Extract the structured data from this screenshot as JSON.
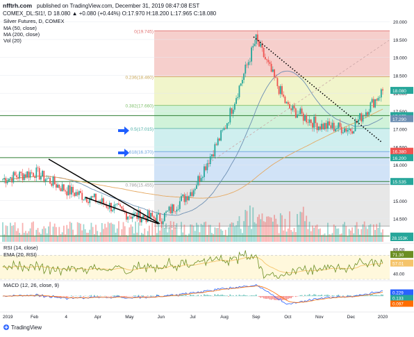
{
  "header": {
    "publisher": "nfftrh.com",
    "published_text": "published on TradingView.com, December 31, 2019 08:47:08 EST",
    "symbol_line": "COMEX_DL:SI1!, D 18.080 ▲ +0.080 (+0.44%) O:17.970 H:18.200 L:17.965 C:18.080"
  },
  "legend": {
    "title": "Silver Futures, D, COMEX",
    "ma50": "MA (50, close)",
    "ma200": "MA (200, close)",
    "vol": "Vol (20)"
  },
  "colors": {
    "up": "#26a69a",
    "down": "#ef5350",
    "ma50": "#6d8fb3",
    "ma200": "#e5a860",
    "rsi": "#6b8e23",
    "rsi_ema": "#f5c46a",
    "macd": "#2962ff",
    "signal": "#ff6d00",
    "fib_red": "#f4c7c3",
    "fib_yellow": "#eef3c2",
    "fib_green": "#c8f0d2",
    "fib_teal": "#c7ecec",
    "fib_blue": "#c9def6",
    "fib_gray": "#e3e3e3"
  },
  "chart_data": [
    {
      "type": "line",
      "name": "price",
      "x": [
        "2019-01",
        "2019-02",
        "2019-03",
        "2019-04",
        "2019-05",
        "2019-06",
        "2019-07",
        "2019-08",
        "2019-09",
        "2019-10",
        "2019-11",
        "2019-12",
        "2020-01"
      ],
      "close_approx": [
        15.6,
        15.8,
        15.3,
        15.0,
        14.6,
        14.5,
        15.3,
        17.0,
        19.5,
        17.6,
        17.1,
        17.0,
        18.08
      ],
      "y_axis_ticks": [
        "20.000",
        "19.500",
        "19.000",
        "18.500",
        "18.000",
        "17.500",
        "17.000",
        "16.500",
        "16.000",
        "15.500",
        "15.000",
        "14.500",
        "14.000"
      ],
      "x_axis_labels": [
        "2019",
        "Feb",
        "4",
        "Apr",
        "May",
        "Jun",
        "Jul",
        "Aug",
        "Sep",
        "Oct",
        "Nov",
        "Dec",
        "2020"
      ],
      "fib_levels": [
        {
          "ratio": "0",
          "value": 19.745,
          "label": "0(19.745)"
        },
        {
          "ratio": "0.236",
          "value": 18.46,
          "label": "0.236(18.460)"
        },
        {
          "ratio": "0.382",
          "value": 17.66,
          "label": "0.382(17.660)"
        },
        {
          "ratio": "0.5",
          "value": 17.015,
          "label": "0.5(17.015)"
        },
        {
          "ratio": "0.618",
          "value": 16.37,
          "label": "0.618(16.370)"
        },
        {
          "ratio": "0.786",
          "value": 15.455,
          "label": "0.786(15.455)"
        },
        {
          "ratio": "1",
          "value": 14.29,
          "label": "1(14.2...)"
        }
      ],
      "price_tags": [
        {
          "value": 18.08,
          "label": "18.080",
          "color": "#26a69a"
        },
        {
          "value": 17.375,
          "label": "17.375",
          "color": "#26a69a"
        },
        {
          "value": 17.29,
          "label": "17.290",
          "color": "#6d8fb3"
        },
        {
          "value": 16.38,
          "label": "16.380",
          "color": "#ef5350"
        },
        {
          "value": 16.2,
          "label": "16.200",
          "color": "#26a69a"
        },
        {
          "value": 15.535,
          "label": "15.535",
          "color": "#26a69a"
        },
        {
          "value": 14.01,
          "label": "14.010",
          "color": "#26a69a"
        }
      ],
      "horizontal_lines": [
        17.375,
        16.2,
        15.535,
        14.01
      ],
      "ylim": [
        13.85,
        20.1
      ]
    },
    {
      "type": "line",
      "name": "RSI (14, close)",
      "ema_label": "EMA (20, RSI)",
      "ticks": [
        "80.00",
        "60.00",
        "40.00"
      ],
      "tags": [
        {
          "label": "71.30",
          "color": "#6b8e23"
        },
        {
          "label": "57.01",
          "color": "#f5c46a"
        }
      ],
      "ylim": [
        30,
        90
      ]
    },
    {
      "type": "line",
      "name": "MACD (12, 26, close, 9)",
      "tags": [
        {
          "label": "0.229",
          "color": "#2962ff"
        },
        {
          "label": "0.133",
          "color": "#26a69a"
        },
        {
          "label": "0.097",
          "color": "#ff6d00"
        }
      ]
    }
  ],
  "volume_tag": "28.153K",
  "footer": {
    "brand": "TradingView"
  }
}
